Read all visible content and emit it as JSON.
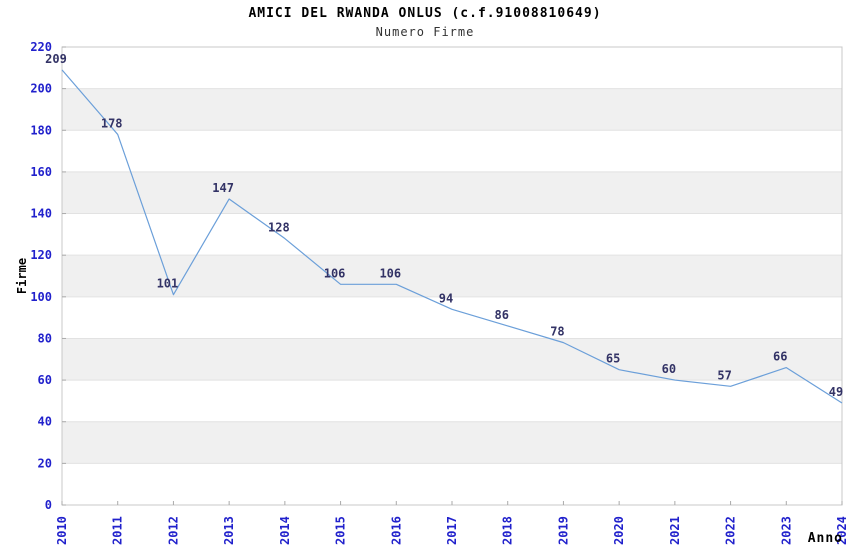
{
  "chart_data": {
    "type": "line",
    "title": "AMICI DEL RWANDA ONLUS (c.f.91008810649)",
    "subtitle": "Numero Firme",
    "xlabel": "Anno",
    "ylabel": "Firme",
    "categories": [
      "2010",
      "2011",
      "2012",
      "2013",
      "2014",
      "2015",
      "2016",
      "2017",
      "2018",
      "2019",
      "2020",
      "2021",
      "2022",
      "2023",
      "2024"
    ],
    "values": [
      209,
      178,
      101,
      147,
      128,
      106,
      106,
      94,
      86,
      78,
      65,
      60,
      57,
      66,
      49
    ],
    "point_labels": [
      "209",
      "178",
      "101",
      "147",
      "128",
      "106",
      "106",
      "94",
      "86",
      "78",
      "65",
      "60",
      "57",
      "66",
      "49"
    ],
    "ylim": [
      0,
      220
    ],
    "ytick_step": 20,
    "y_ticks": [
      0,
      20,
      40,
      60,
      80,
      100,
      120,
      140,
      160,
      180,
      200,
      220
    ],
    "grid": true,
    "legend_position": "none",
    "colors": {
      "line": "#6b9fd9",
      "tick_label": "#2121cc",
      "data_label": "#333366",
      "band": "#f0f0f0",
      "grid_line": "#e2e2e2",
      "plot_border": "#c8c8c8",
      "axis_title": "#000000",
      "tick_mark": "#aaaaaa"
    }
  }
}
